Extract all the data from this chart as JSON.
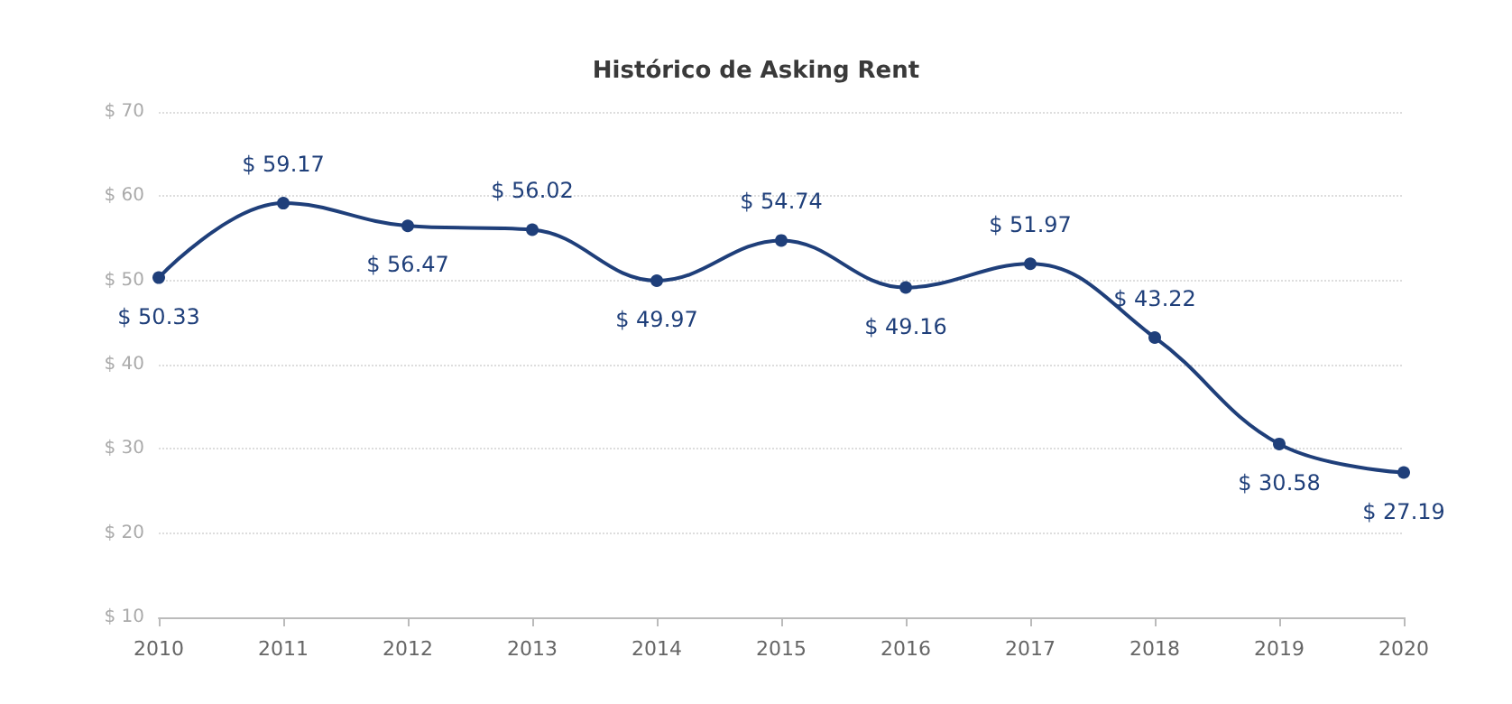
{
  "chart_data": {
    "type": "line",
    "title": "Histórico de Asking Rent",
    "categories": [
      "2010",
      "2011",
      "2012",
      "2013",
      "2014",
      "2015",
      "2016",
      "2017",
      "2018",
      "2019",
      "2020"
    ],
    "series": [
      {
        "color": "#1f3f7a",
        "values": [
          50.33,
          59.17,
          56.47,
          56.02,
          49.97,
          54.74,
          49.16,
          51.97,
          43.22,
          30.58,
          27.19
        ],
        "value_labels": [
          "$ 50.33",
          "$ 59.17",
          "$ 56.47",
          "$ 56.02",
          "$ 49.97",
          "$ 54.74",
          "$ 49.16",
          "$ 51.97",
          "$ 43.22",
          "$ 30.58",
          "$ 27.19"
        ]
      }
    ],
    "ylim": [
      10,
      70
    ],
    "yticks": [
      {
        "value": 10,
        "label": "$ 10"
      },
      {
        "value": 20,
        "label": "$ 20"
      },
      {
        "value": 30,
        "label": "$ 30"
      },
      {
        "value": 40,
        "label": "$ 40"
      },
      {
        "value": 50,
        "label": "$ 50"
      },
      {
        "value": 60,
        "label": "$ 60"
      },
      {
        "value": 70,
        "label": "$ 70"
      }
    ],
    "grid": "y",
    "marker": "circle",
    "line_style": "solid"
  }
}
